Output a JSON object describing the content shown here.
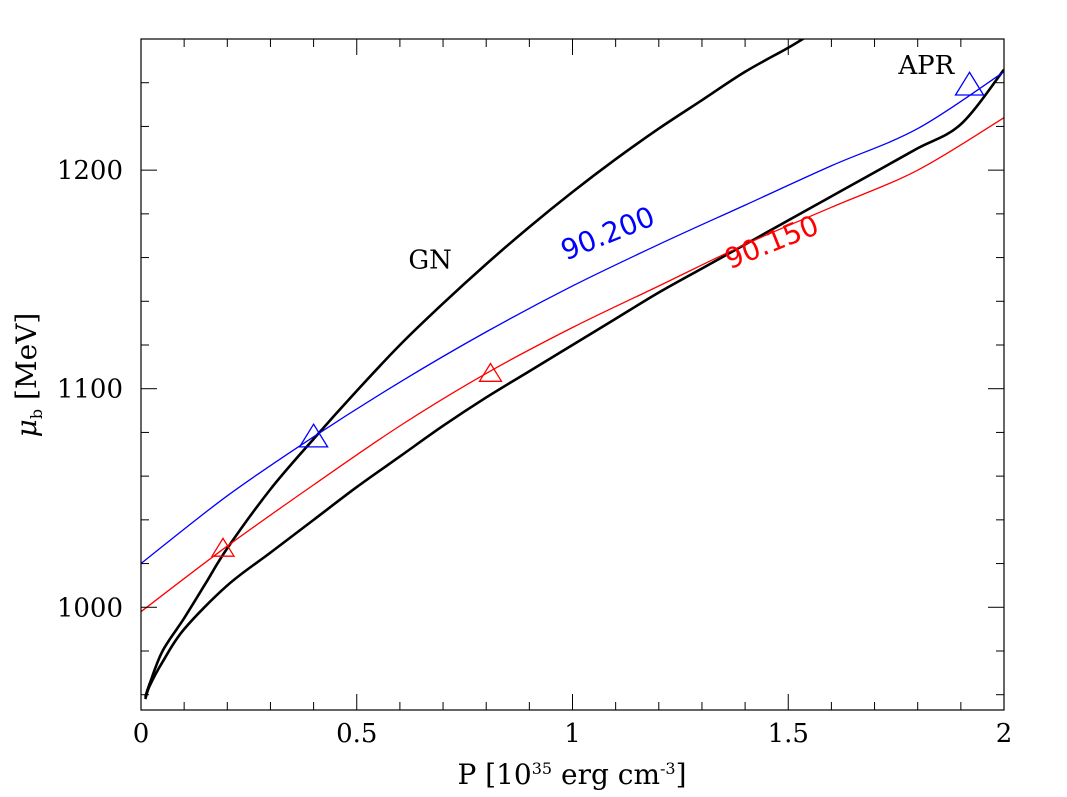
{
  "chart_data": {
    "type": "line",
    "xlabel": "P [10",
    "xlabel_exp": "35",
    "xlabel_unit": " erg cm",
    "xlabel_unit_exp": "-3",
    "xlabel_close": "]",
    "ylabel_sym": "μ",
    "ylabel_sub": "b",
    "ylabel_unit": "[MeV]",
    "xlim": [
      0,
      2
    ],
    "ylim": [
      953,
      1260
    ],
    "xticks": [
      0,
      0.5,
      1,
      1.5,
      2
    ],
    "xtick_labels": [
      "0",
      "0.5",
      "1",
      "1.5",
      "2"
    ],
    "yticks": [
      1000,
      1100,
      1200
    ],
    "ytick_labels": [
      "1000",
      "1100",
      "1200"
    ],
    "x_minor_step": 0.1,
    "y_minor_step": 20,
    "grid": false,
    "series": [
      {
        "name": "GN",
        "color": "#000000",
        "x": [
          0.01,
          0.02,
          0.05,
          0.1,
          0.15,
          0.2,
          0.3,
          0.4,
          0.5,
          0.6,
          0.7,
          0.8,
          0.9,
          1.0,
          1.1,
          1.2,
          1.3,
          1.4,
          1.5,
          1.55
        ],
        "y": [
          959,
          965,
          980,
          995,
          1011,
          1027,
          1054,
          1077,
          1099,
          1120,
          1139,
          1157,
          1174,
          1190,
          1205,
          1219,
          1232,
          1245,
          1256,
          1262
        ]
      },
      {
        "name": "APR",
        "color": "#000000",
        "x": [
          0.01,
          0.02,
          0.05,
          0.1,
          0.2,
          0.3,
          0.4,
          0.5,
          0.6,
          0.7,
          0.8,
          0.9,
          1.0,
          1.1,
          1.2,
          1.3,
          1.4,
          1.5,
          1.6,
          1.7,
          1.8,
          1.9,
          2.0
        ],
        "y": [
          958,
          964,
          975,
          990,
          1010,
          1025,
          1040,
          1055,
          1069,
          1083,
          1096,
          1108,
          1120,
          1132,
          1144,
          1155,
          1166,
          1177,
          1188,
          1199,
          1210,
          1221,
          1246
        ]
      },
      {
        "name": "90.200",
        "color": "#0000ff",
        "x": [
          0.0,
          0.2,
          0.4,
          0.6,
          0.8,
          1.0,
          1.2,
          1.4,
          1.6,
          1.8,
          2.0
        ],
        "y": [
          1020,
          1051,
          1078,
          1103,
          1126,
          1147,
          1166,
          1184,
          1202,
          1219,
          1245
        ]
      },
      {
        "name": "90.150",
        "color": "#ff0000",
        "x": [
          0.0,
          0.2,
          0.4,
          0.6,
          0.8,
          1.0,
          1.2,
          1.4,
          1.6,
          1.8,
          2.0
        ],
        "y": [
          998,
          1028,
          1056,
          1083,
          1107,
          1128,
          1147,
          1166,
          1183,
          1200,
          1224
        ]
      }
    ],
    "markers": [
      {
        "x": 0.4,
        "y": 1078,
        "color": "#0000ff",
        "size": "large"
      },
      {
        "x": 1.92,
        "y": 1239,
        "color": "#0000ff",
        "size": "large"
      },
      {
        "x": 0.19,
        "y": 1027,
        "color": "#ff0000",
        "size": "small"
      },
      {
        "x": 0.81,
        "y": 1107,
        "color": "#ff0000",
        "size": "small"
      }
    ],
    "annotations": [
      {
        "text": "GN",
        "x": 0.67,
        "y": 1155,
        "color": "#000000",
        "angle": 0
      },
      {
        "text": "APR",
        "x": 1.82,
        "y": 1244,
        "color": "#000000",
        "angle": 0
      },
      {
        "text": "90.200",
        "x": 1.09,
        "y": 1167,
        "color": "#0000ff",
        "angle": -22
      },
      {
        "text": "90.150",
        "x": 1.47,
        "y": 1163,
        "color": "#ff0000",
        "angle": -22
      }
    ]
  }
}
